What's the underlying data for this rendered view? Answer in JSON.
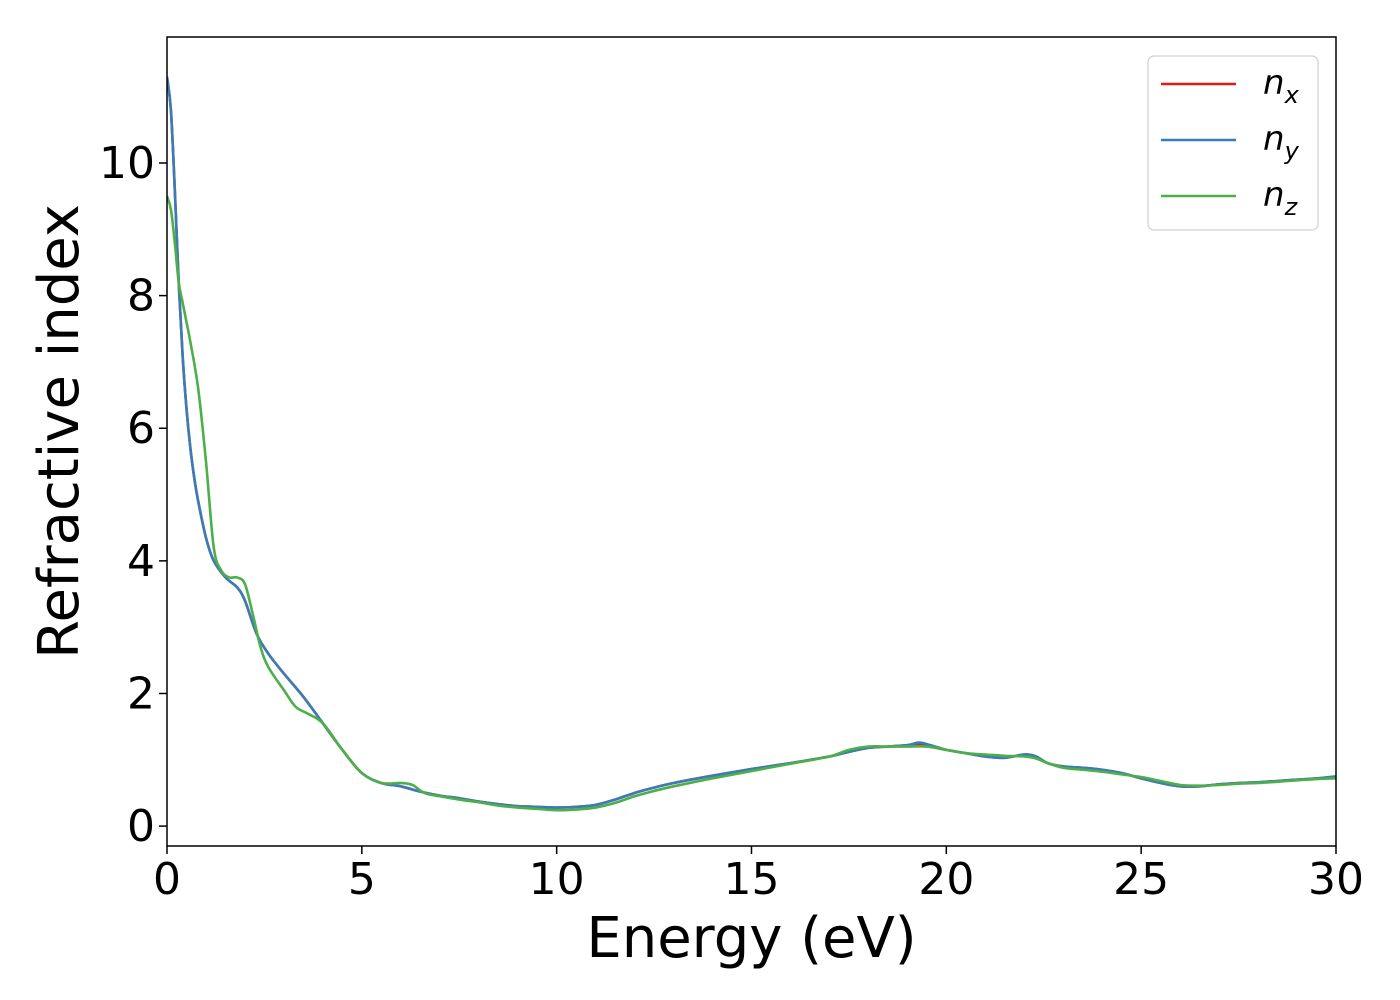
{
  "chart_data": {
    "type": "line",
    "xlabel": "Energy (eV)",
    "ylabel": "Refractive index",
    "xlim": [
      0,
      30
    ],
    "ylim": [
      -0.3,
      11.9
    ],
    "x_ticks": [
      0,
      5,
      10,
      15,
      20,
      25,
      30
    ],
    "y_ticks": [
      0,
      2,
      4,
      6,
      8,
      10
    ],
    "grid": false,
    "legend_position": "top-right",
    "series": [
      {
        "name": "n",
        "subscript": "x",
        "color": "#e41a1c",
        "x": [
          0,
          0.1,
          0.2,
          0.3,
          0.4,
          0.5,
          0.6,
          0.7,
          0.8,
          1.0,
          1.2,
          1.5,
          1.8,
          2.0,
          2.3,
          2.6,
          3.0,
          3.5,
          4.0,
          4.5,
          5.0,
          5.5,
          6.0,
          6.5,
          7.0,
          7.5,
          8.0,
          8.5,
          9.0,
          9.5,
          10.0,
          10.5,
          11.0,
          11.5,
          12.0,
          12.5,
          13.0,
          14.0,
          15.0,
          16.0,
          17.0,
          17.5,
          18.0,
          18.5,
          19.0,
          19.3,
          19.6,
          20.0,
          20.5,
          21.0,
          21.5,
          22.0,
          22.3,
          22.6,
          23.0,
          23.5,
          24.0,
          24.5,
          25.0,
          25.5,
          26.0,
          26.5,
          27.0,
          27.5,
          28.0,
          28.5,
          29.0,
          29.5,
          30.0
        ],
        "y": [
          11.3,
          10.8,
          9.6,
          8.2,
          7.1,
          6.3,
          5.7,
          5.25,
          4.9,
          4.35,
          4.0,
          3.75,
          3.6,
          3.4,
          2.9,
          2.6,
          2.3,
          1.95,
          1.55,
          1.15,
          0.8,
          0.65,
          0.6,
          0.52,
          0.46,
          0.42,
          0.37,
          0.33,
          0.3,
          0.29,
          0.28,
          0.29,
          0.32,
          0.4,
          0.5,
          0.58,
          0.65,
          0.76,
          0.86,
          0.95,
          1.05,
          1.12,
          1.18,
          1.2,
          1.22,
          1.24,
          1.2,
          1.15,
          1.1,
          1.05,
          1.03,
          1.08,
          1.05,
          0.95,
          0.9,
          0.88,
          0.85,
          0.8,
          0.72,
          0.65,
          0.6,
          0.6,
          0.63,
          0.65,
          0.66,
          0.68,
          0.7,
          0.72,
          0.74
        ]
      },
      {
        "name": "n",
        "subscript": "y",
        "color": "#377eb8",
        "x": [
          0,
          0.1,
          0.2,
          0.3,
          0.4,
          0.5,
          0.6,
          0.7,
          0.8,
          1.0,
          1.2,
          1.5,
          1.8,
          2.0,
          2.3,
          2.6,
          3.0,
          3.5,
          4.0,
          4.5,
          5.0,
          5.5,
          6.0,
          6.5,
          7.0,
          7.5,
          8.0,
          8.5,
          9.0,
          9.5,
          10.0,
          10.5,
          11.0,
          11.5,
          12.0,
          12.5,
          13.0,
          14.0,
          15.0,
          16.0,
          17.0,
          17.5,
          18.0,
          18.5,
          19.0,
          19.3,
          19.6,
          20.0,
          20.5,
          21.0,
          21.5,
          22.0,
          22.3,
          22.6,
          23.0,
          23.5,
          24.0,
          24.5,
          25.0,
          25.5,
          26.0,
          26.5,
          27.0,
          27.5,
          28.0,
          28.5,
          29.0,
          29.5,
          30.0
        ],
        "y": [
          11.3,
          10.8,
          9.6,
          8.2,
          7.1,
          6.3,
          5.7,
          5.25,
          4.9,
          4.35,
          4.0,
          3.75,
          3.6,
          3.4,
          2.9,
          2.6,
          2.3,
          1.95,
          1.55,
          1.15,
          0.8,
          0.65,
          0.6,
          0.52,
          0.46,
          0.42,
          0.37,
          0.33,
          0.3,
          0.29,
          0.28,
          0.29,
          0.32,
          0.4,
          0.5,
          0.58,
          0.65,
          0.76,
          0.86,
          0.95,
          1.05,
          1.12,
          1.18,
          1.2,
          1.22,
          1.26,
          1.22,
          1.15,
          1.1,
          1.05,
          1.03,
          1.08,
          1.05,
          0.95,
          0.9,
          0.88,
          0.85,
          0.8,
          0.72,
          0.65,
          0.6,
          0.6,
          0.63,
          0.65,
          0.66,
          0.68,
          0.7,
          0.72,
          0.75
        ]
      },
      {
        "name": "n",
        "subscript": "z",
        "color": "#4daf4a",
        "x": [
          0,
          0.1,
          0.2,
          0.3,
          0.4,
          0.5,
          0.6,
          0.8,
          1.0,
          1.2,
          1.4,
          1.6,
          1.8,
          2.0,
          2.2,
          2.4,
          2.6,
          3.0,
          3.3,
          3.6,
          4.0,
          4.5,
          5.0,
          5.5,
          6.0,
          6.3,
          6.6,
          7.0,
          7.5,
          8.0,
          8.5,
          9.0,
          9.5,
          10.0,
          10.5,
          11.0,
          11.5,
          12.0,
          12.5,
          13.0,
          14.0,
          15.0,
          16.0,
          17.0,
          17.5,
          18.0,
          18.5,
          19.0,
          19.5,
          20.0,
          20.5,
          21.0,
          21.5,
          22.0,
          22.3,
          22.6,
          23.0,
          23.5,
          24.0,
          24.5,
          25.0,
          25.5,
          26.0,
          26.5,
          27.0,
          27.5,
          28.0,
          28.5,
          29.0,
          29.5,
          30.0
        ],
        "y": [
          9.5,
          9.3,
          8.8,
          8.2,
          7.9,
          7.6,
          7.3,
          6.6,
          5.5,
          4.2,
          3.85,
          3.75,
          3.75,
          3.65,
          3.2,
          2.7,
          2.4,
          2.05,
          1.8,
          1.7,
          1.55,
          1.15,
          0.8,
          0.65,
          0.65,
          0.62,
          0.5,
          0.45,
          0.4,
          0.36,
          0.31,
          0.28,
          0.26,
          0.24,
          0.25,
          0.28,
          0.35,
          0.45,
          0.53,
          0.6,
          0.72,
          0.83,
          0.94,
          1.05,
          1.15,
          1.2,
          1.2,
          1.2,
          1.2,
          1.15,
          1.1,
          1.08,
          1.06,
          1.05,
          1.02,
          0.95,
          0.88,
          0.85,
          0.82,
          0.78,
          0.74,
          0.68,
          0.62,
          0.61,
          0.62,
          0.64,
          0.65,
          0.67,
          0.69,
          0.71,
          0.72
        ]
      }
    ]
  }
}
